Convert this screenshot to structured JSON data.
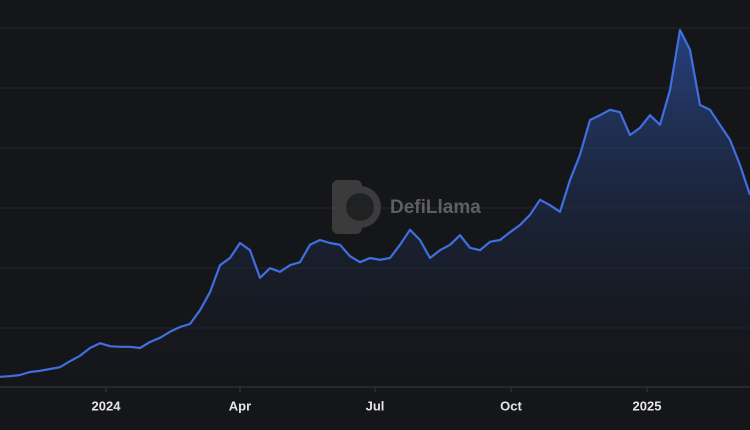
{
  "chart_data": {
    "type": "area",
    "watermark": "DefiLlama",
    "color": "#3f6fe0",
    "xlim": [
      0,
      75
    ],
    "xticks": [
      {
        "value": 10.6,
        "label": "2024"
      },
      {
        "value": 24.0,
        "label": "Apr"
      },
      {
        "value": 37.5,
        "label": "Jul"
      },
      {
        "value": 51.1,
        "label": "Oct"
      },
      {
        "value": 64.7,
        "label": "2025"
      }
    ],
    "ylim": [
      0,
      6.45
    ],
    "values": [
      0.17,
      0.18,
      0.2,
      0.25,
      0.27,
      0.3,
      0.33,
      0.43,
      0.52,
      0.65,
      0.73,
      0.68,
      0.67,
      0.67,
      0.65,
      0.75,
      0.82,
      0.92,
      1.0,
      1.05,
      1.28,
      1.58,
      2.03,
      2.15,
      2.4,
      2.28,
      1.82,
      1.98,
      1.92,
      2.03,
      2.08,
      2.37,
      2.45,
      2.4,
      2.37,
      2.18,
      2.08,
      2.15,
      2.12,
      2.15,
      2.37,
      2.62,
      2.45,
      2.15,
      2.28,
      2.37,
      2.53,
      2.32,
      2.28,
      2.42,
      2.45,
      2.58,
      2.7,
      2.87,
      3.12,
      3.03,
      2.92,
      3.45,
      3.87,
      4.45,
      4.53,
      4.62,
      4.58,
      4.2,
      4.32,
      4.53,
      4.37,
      4.95,
      5.95,
      5.62,
      4.7,
      4.62,
      4.37,
      4.12,
      3.7,
      3.2
    ]
  }
}
